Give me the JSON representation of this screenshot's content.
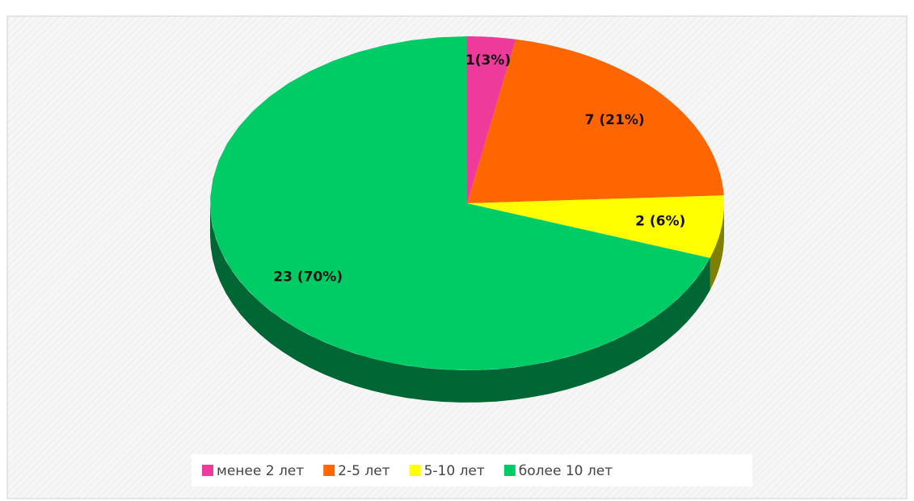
{
  "chart_data": {
    "type": "pie",
    "categories": [
      "менее 2 лет",
      "2-5 лет",
      "5-10 лет",
      "более 10 лет"
    ],
    "values": [
      1,
      7,
      2,
      23
    ],
    "value_labels": [
      "1(3%)",
      "7 (21%)",
      "2 (6%)",
      "23 (70%)"
    ],
    "colors": [
      "#ee3a9a",
      "#ff6600",
      "#ffff00",
      "#00cc66"
    ],
    "legend": "bottom"
  }
}
